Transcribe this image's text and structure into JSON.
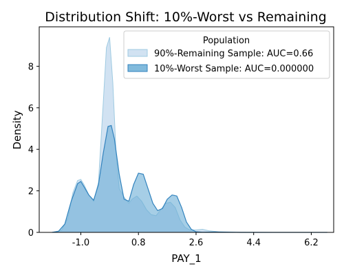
{
  "chart_data": {
    "type": "area",
    "title": "Distribution Shift: 10%-Worst vs Remaining",
    "xlabel": "PAY_1",
    "ylabel": "Density",
    "xlim": [
      -2.3,
      6.9
    ],
    "ylim": [
      0,
      9.9
    ],
    "xticks": [
      -1.0,
      0.8,
      2.6,
      4.4,
      6.2
    ],
    "xtick_labels": [
      "-1.0",
      "0.8",
      "2.6",
      "4.4",
      "6.2"
    ],
    "yticks": [
      0,
      2,
      4,
      6,
      8
    ],
    "ytick_labels": [
      "0",
      "2",
      "4",
      "6",
      "8"
    ],
    "grid": false,
    "legend": {
      "title": "Population",
      "placement": "top-right"
    },
    "series": [
      {
        "name": "90%-Remaining Sample: AUC=0.66",
        "fill": "#c6dbef",
        "stroke": "#9ecae1",
        "x": [
          -1.9,
          -1.6,
          -1.4,
          -1.25,
          -1.1,
          -1.0,
          -0.9,
          -0.75,
          -0.6,
          -0.45,
          -0.3,
          -0.2,
          -0.1,
          0.0,
          0.1,
          0.2,
          0.35,
          0.5,
          0.6,
          0.75,
          0.9,
          1.05,
          1.2,
          1.35,
          1.5,
          1.65,
          1.8,
          1.95,
          2.1,
          2.25,
          2.4,
          2.6,
          2.8,
          3.0,
          3.3,
          3.6,
          4.0,
          5.0,
          6.0,
          6.7
        ],
        "y": [
          0.0,
          0.1,
          0.7,
          1.9,
          2.5,
          2.55,
          2.3,
          1.8,
          1.5,
          2.4,
          6.2,
          8.9,
          9.4,
          7.2,
          3.8,
          2.1,
          1.7,
          1.4,
          1.6,
          1.75,
          1.5,
          1.1,
          0.85,
          0.8,
          1.1,
          1.4,
          1.45,
          1.2,
          0.6,
          0.25,
          0.12,
          0.12,
          0.15,
          0.08,
          0.03,
          0.02,
          0.01,
          0.0,
          0.0,
          0.0
        ]
      },
      {
        "name": "10%-Worst Sample: AUC=0.000000",
        "fill": "#6baed6",
        "stroke": "#3182bd",
        "x": [
          -1.9,
          -1.7,
          -1.5,
          -1.3,
          -1.1,
          -1.0,
          -0.9,
          -0.75,
          -0.6,
          -0.45,
          -0.3,
          -0.15,
          -0.05,
          0.05,
          0.2,
          0.35,
          0.5,
          0.65,
          0.8,
          0.95,
          1.1,
          1.25,
          1.4,
          1.55,
          1.7,
          1.85,
          2.0,
          2.15,
          2.3,
          2.45,
          2.6,
          2.8,
          3.2,
          3.6,
          4.0,
          5.0,
          6.0,
          6.7
        ],
        "y": [
          0.0,
          0.05,
          0.4,
          1.5,
          2.35,
          2.45,
          2.2,
          1.8,
          1.55,
          2.3,
          3.8,
          5.1,
          5.15,
          4.5,
          2.8,
          1.6,
          1.5,
          2.3,
          2.85,
          2.8,
          2.1,
          1.4,
          1.05,
          1.15,
          1.6,
          1.8,
          1.75,
          1.2,
          0.5,
          0.15,
          0.03,
          0.01,
          0.02,
          0.01,
          0.0,
          0.0,
          0.0,
          0.0
        ]
      }
    ]
  }
}
